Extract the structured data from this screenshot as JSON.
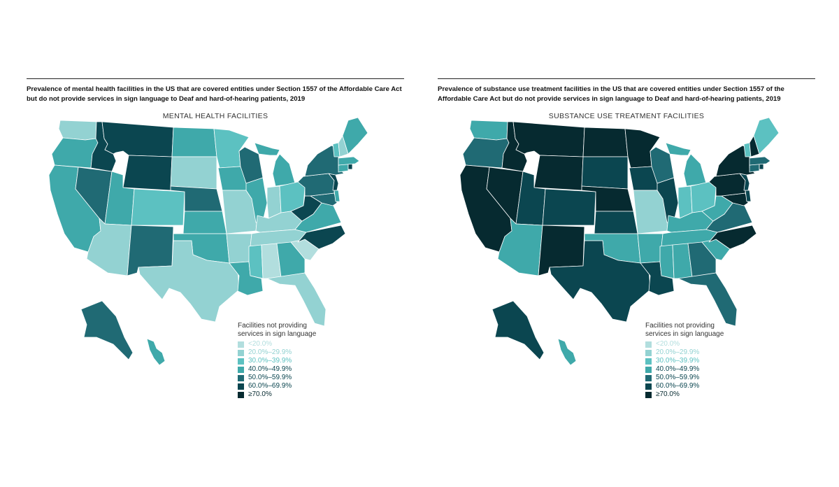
{
  "colors": {
    "lt20": "#b2dede",
    "20_29": "#93d2d2",
    "30_39": "#5cc1c1",
    "40_49": "#3fa9aa",
    "50_59": "#206a74",
    "60_69": "#0b4650",
    "ge70": "#062a30"
  },
  "panels": [
    {
      "caption": "Prevalence of mental health facilities in the US that are covered entities under Section 1557 of the Affordable Care Act but do not provide services in sign language to Deaf and hard-of-hearing patients, 2019",
      "map_title": "MENTAL HEALTH FACILITIES",
      "legend": {
        "title_line1": "Facilities not providing",
        "title_line2": "services in sign language",
        "items": [
          {
            "key": "lt20",
            "label": "<20.0%"
          },
          {
            "key": "20_29",
            "label": "20.0%–29.9%"
          },
          {
            "key": "30_39",
            "label": "30.0%–39.9%"
          },
          {
            "key": "40_49",
            "label": "40.0%–49.9%"
          },
          {
            "key": "50_59",
            "label": "50.0%–59.9%"
          },
          {
            "key": "60_69",
            "label": "60.0%–69.9%"
          },
          {
            "key": "ge70",
            "label": "≥70.0%"
          }
        ]
      },
      "state_categories": {
        "WA": "20_29",
        "OR": "40_49",
        "CA": "40_49",
        "NV": "50_59",
        "ID": "60_69",
        "MT": "60_69",
        "WY": "60_69",
        "UT": "40_49",
        "AZ": "20_29",
        "CO": "30_39",
        "NM": "50_59",
        "ND": "40_49",
        "SD": "20_29",
        "NE": "50_59",
        "KS": "40_49",
        "OK": "40_49",
        "TX": "20_29",
        "MN": "30_39",
        "IA": "40_49",
        "MO": "20_29",
        "AR": "20_29",
        "LA": "40_49",
        "WI": "50_59",
        "IL": "40_49",
        "MI": "40_49",
        "IN": "20_29",
        "OH": "30_39",
        "KY": "20_29",
        "TN": "20_29",
        "MS": "30_39",
        "AL": "lt20",
        "GA": "40_49",
        "FL": "20_29",
        "SC": "lt20",
        "NC": "60_69",
        "VA": "40_49",
        "WV": "60_69",
        "MD": "50_59",
        "DE": "40_49",
        "PA": "50_59",
        "NJ": "60_69",
        "NY": "50_59",
        "CT": "40_49",
        "RI": "60_69",
        "MA": "40_49",
        "VT": "30_39",
        "NH": "20_29",
        "ME": "40_49",
        "AK": "50_59",
        "HI": "40_49"
      }
    },
    {
      "caption": "Prevalence of substance use treatment facilities in the US that are covered entities under Section 1557 of the Affordable Care Act but do not provide services in sign language to Deaf and hard-of-hearing patients, 2019",
      "map_title": "SUBSTANCE USE TREATMENT FACILITIES",
      "legend": {
        "title_line1": "Facilities not providing",
        "title_line2": "services in sign language",
        "items": [
          {
            "key": "lt20",
            "label": "<20.0%"
          },
          {
            "key": "20_29",
            "label": "20.0%–29.9%"
          },
          {
            "key": "30_39",
            "label": "30.0%–39.9%"
          },
          {
            "key": "40_49",
            "label": "40.0%–49.9%"
          },
          {
            "key": "50_59",
            "label": "50.0%–59.9%"
          },
          {
            "key": "60_69",
            "label": "60.0%–69.9%"
          },
          {
            "key": "ge70",
            "label": "≥70.0%"
          }
        ]
      },
      "state_categories": {
        "WA": "40_49",
        "OR": "50_59",
        "CA": "ge70",
        "NV": "ge70",
        "ID": "ge70",
        "MT": "ge70",
        "WY": "ge70",
        "UT": "60_69",
        "AZ": "40_49",
        "CO": "60_69",
        "NM": "ge70",
        "ND": "ge70",
        "SD": "60_69",
        "NE": "ge70",
        "KS": "60_69",
        "OK": "40_49",
        "TX": "60_69",
        "MN": "ge70",
        "IA": "60_69",
        "MO": "20_29",
        "AR": "40_49",
        "LA": "60_69",
        "WI": "50_59",
        "IL": "60_69",
        "MI": "40_49",
        "IN": "30_39",
        "OH": "30_39",
        "KY": "40_49",
        "TN": "40_49",
        "MS": "40_49",
        "AL": "40_49",
        "GA": "50_59",
        "FL": "50_59",
        "SC": "40_49",
        "NC": "ge70",
        "VA": "50_59",
        "WV": "40_49",
        "MD": "ge70",
        "DE": "60_69",
        "PA": "ge70",
        "NJ": "60_69",
        "NY": "ge70",
        "CT": "50_59",
        "RI": "60_69",
        "MA": "50_59",
        "VT": "30_39",
        "NH": "ge70",
        "ME": "30_39",
        "AK": "60_69",
        "HI": "40_49"
      }
    }
  ]
}
